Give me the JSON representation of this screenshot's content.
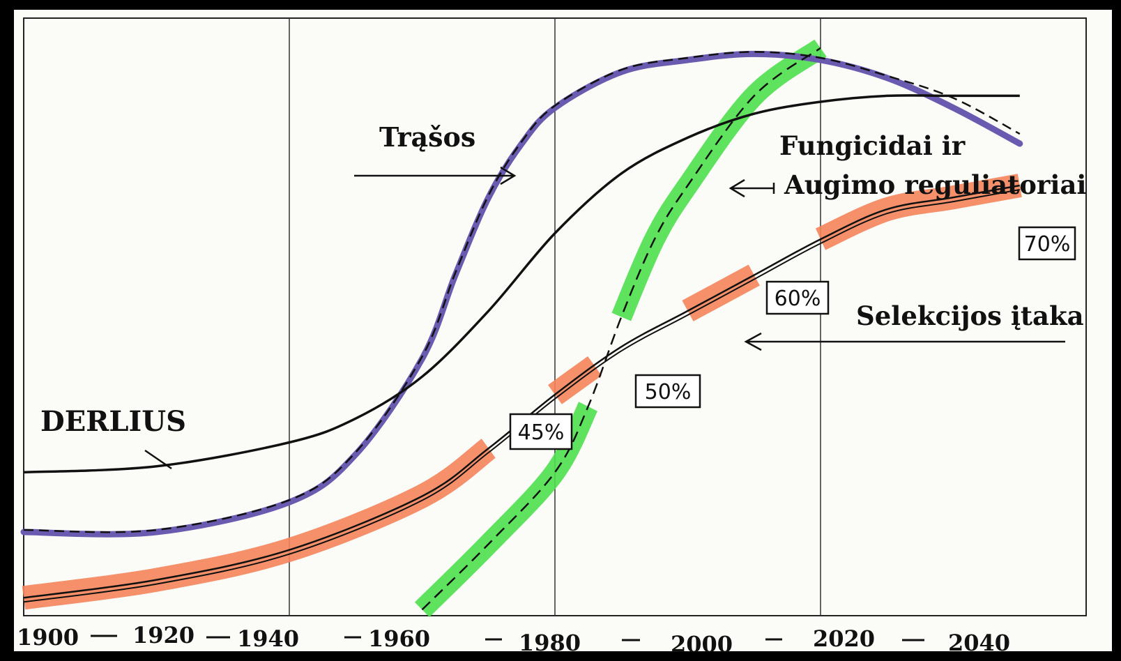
{
  "chart_data": {
    "type": "line",
    "title": "",
    "xlabel": "",
    "ylabel": "",
    "xlim": [
      1900,
      2060
    ],
    "ylim": [
      0,
      100
    ],
    "x_ticks": [
      "1900",
      "1920",
      "1940",
      "1960",
      "1980",
      "2000",
      "2020",
      "2040"
    ],
    "grid": true,
    "colors": {
      "trasos": "#6b5bb0",
      "fungicidai": "#4ee04e",
      "selekcija": "#f4845a",
      "derlius": "#111111"
    },
    "series": [
      {
        "name": "DERLIUS",
        "x": [
          1900,
          1920,
          1940,
          1950,
          1960,
          1970,
          1980,
          1990,
          2000,
          2010,
          2020,
          2030,
          2040,
          2050
        ],
        "y": [
          24,
          25,
          29,
          33,
          40,
          51,
          64,
          74,
          80,
          84,
          86,
          87,
          87,
          87
        ]
      },
      {
        "name": "Trąšos",
        "x": [
          1900,
          1920,
          1940,
          1950,
          1960,
          1965,
          1970,
          1975,
          1980,
          1990,
          2000,
          2010,
          2020,
          2030,
          2040,
          2050
        ],
        "y": [
          14,
          14,
          19,
          27,
          43,
          57,
          70,
          79,
          85,
          91,
          93,
          94,
          93,
          90,
          85,
          79
        ]
      },
      {
        "name": "Fungicidai ir Augimo reguliatoriai",
        "x": [
          1960,
          1970,
          1980,
          1985,
          1990,
          1995,
          2000,
          2010,
          2020
        ],
        "y": [
          1,
          12,
          24,
          35,
          50,
          63,
          72,
          87,
          95
        ]
      },
      {
        "name": "Selekcijos įtaka",
        "x": [
          1900,
          1920,
          1940,
          1960,
          1970,
          1980,
          1990,
          2000,
          2010,
          2020,
          2030,
          2040,
          2050
        ],
        "y": [
          3,
          6,
          11,
          20,
          28,
          37,
          45,
          51,
          57,
          63,
          68,
          70,
          72
        ]
      }
    ],
    "annotations": {
      "derlius": "DERLIUS",
      "trasos": "Trąšos",
      "fungicidai_line1": "Fungicidai ir",
      "fungicidai_line2": "Augimo reguliatoriai",
      "selekcija": "Selekcijos įtaka",
      "pct_45": "45%",
      "pct_50": "50%",
      "pct_60": "60%",
      "pct_70": "70%"
    }
  }
}
